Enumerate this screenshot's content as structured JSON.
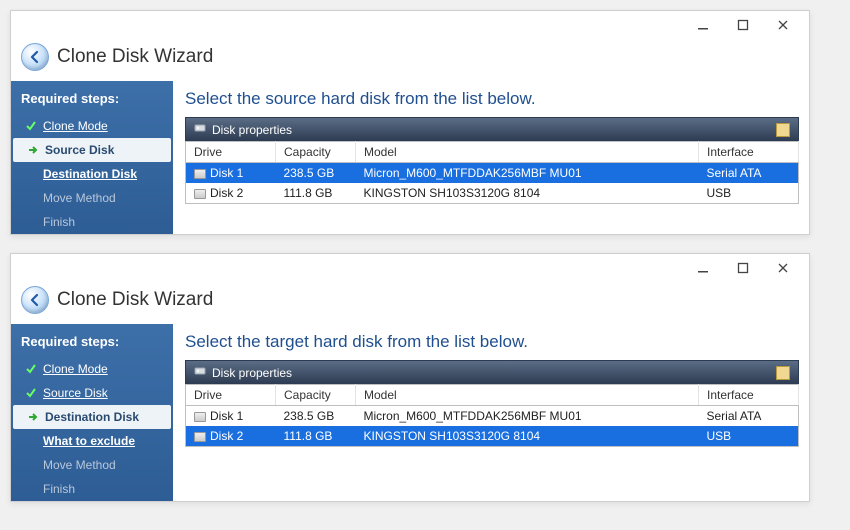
{
  "windows": [
    {
      "id": "w1",
      "title": "Clone Disk Wizard",
      "instruction": "Select the source hard disk from the list below.",
      "sidebar_heading": "Required steps:",
      "steps": [
        {
          "label": "Clone Mode",
          "state": "done"
        },
        {
          "label": "Source Disk",
          "state": "active"
        },
        {
          "label": "Destination Disk",
          "state": "next"
        },
        {
          "label": "Move Method",
          "state": "pending"
        },
        {
          "label": "Finish",
          "state": "pending"
        }
      ],
      "panel_title": "Disk properties",
      "columns": {
        "drive": "Drive",
        "capacity": "Capacity",
        "model": "Model",
        "interface": "Interface"
      },
      "rows": [
        {
          "drive": "Disk 1",
          "capacity": "238.5 GB",
          "model": "Micron_M600_MTFDDAK256MBF MU01",
          "interface": "Serial ATA",
          "selected": true
        },
        {
          "drive": "Disk 2",
          "capacity": "111.8 GB",
          "model": "KINGSTON SH103S3120G 8104",
          "interface": "USB",
          "selected": false
        }
      ]
    },
    {
      "id": "w2",
      "title": "Clone Disk Wizard",
      "instruction": "Select the target hard disk from the list below.",
      "sidebar_heading": "Required steps:",
      "steps": [
        {
          "label": "Clone Mode",
          "state": "done"
        },
        {
          "label": "Source Disk",
          "state": "done"
        },
        {
          "label": "Destination Disk",
          "state": "active"
        },
        {
          "label": "What to exclude",
          "state": "next"
        },
        {
          "label": "Move Method",
          "state": "pending"
        },
        {
          "label": "Finish",
          "state": "pending"
        }
      ],
      "panel_title": "Disk properties",
      "columns": {
        "drive": "Drive",
        "capacity": "Capacity",
        "model": "Model",
        "interface": "Interface"
      },
      "rows": [
        {
          "drive": "Disk 1",
          "capacity": "238.5 GB",
          "model": "Micron_M600_MTFDDAK256MBF MU01",
          "interface": "Serial ATA",
          "selected": false
        },
        {
          "drive": "Disk 2",
          "capacity": "111.8 GB",
          "model": "KINGSTON SH103S3120G 8104",
          "interface": "USB",
          "selected": true
        }
      ]
    }
  ],
  "colors": {
    "sidebar_top": "#3d6fa8",
    "sidebar_bottom": "#2e5d95",
    "panel_top": "#5a6d85",
    "panel_bottom": "#2d3b52",
    "selection": "#1a6fe0",
    "instruction": "#1f4f8f"
  }
}
